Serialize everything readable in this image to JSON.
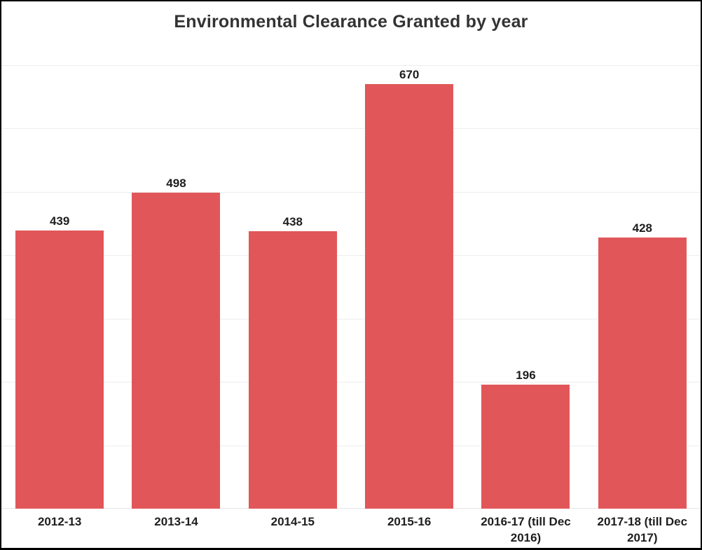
{
  "title": "Environmental Clearance Granted by year",
  "colors": {
    "bar": "#e15759",
    "gridline": "#ededed",
    "text": "#1e1e1e",
    "title_text": "#333333",
    "frame_border": "#000000",
    "background": "#ffffff"
  },
  "chart_data": {
    "type": "bar",
    "title": "Environmental Clearance Granted by year",
    "categories": [
      "2012-13",
      "2013-14",
      "2014-15",
      "2015-16",
      "2016-17 (till Dec 2016)",
      "2017-18 (till Dec 2017)"
    ],
    "values": [
      439,
      498,
      438,
      670,
      196,
      428
    ],
    "value_labels": [
      "439",
      "498",
      "438",
      "670",
      "196",
      "428"
    ],
    "xlabel": "",
    "ylabel": "",
    "ylim": [
      0,
      736
    ],
    "gridline_interval": 100,
    "grid": true,
    "legend": false,
    "bar_color": "#e15759"
  }
}
